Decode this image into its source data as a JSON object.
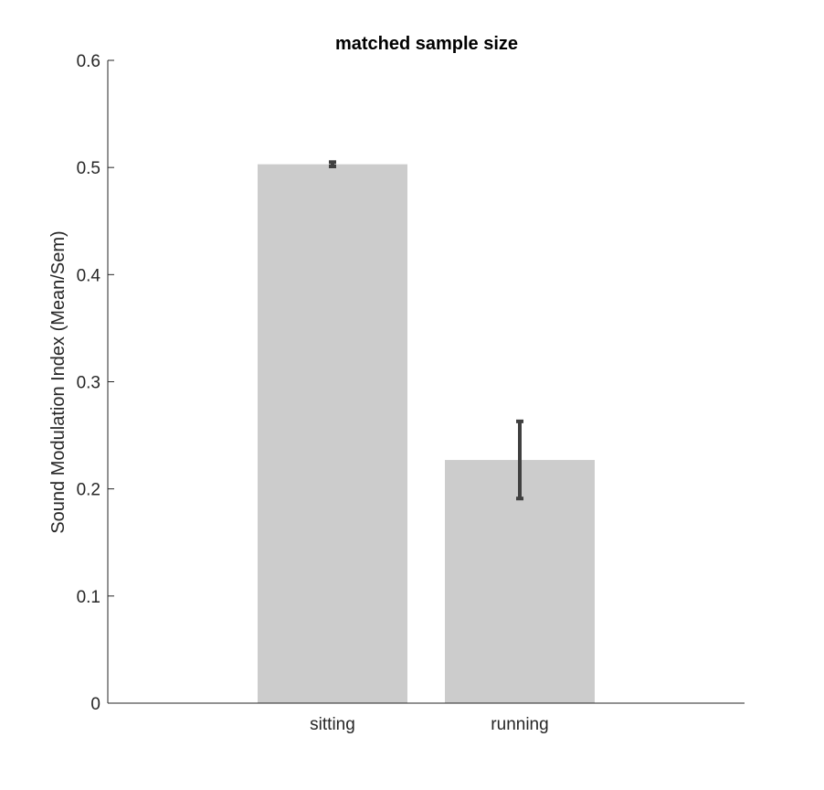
{
  "chart_data": {
    "type": "bar",
    "title": "matched sample size",
    "xlabel": "",
    "ylabel": "Sound Modulation Index (Mean/Sem)",
    "categories": [
      "sitting",
      "running"
    ],
    "values": [
      0.503,
      0.227
    ],
    "errors": [
      0.002,
      0.036
    ],
    "ylim": [
      0,
      0.6
    ],
    "yticks": [
      0,
      0.1,
      0.2,
      0.3,
      0.4,
      0.5,
      0.6
    ],
    "ytick_labels": [
      "0",
      "0.1",
      "0.2",
      "0.3",
      "0.4",
      "0.5",
      "0.6"
    ],
    "grid": false,
    "legend": "none",
    "colors": {
      "bar": "#cccccc",
      "error_bar": "#404040",
      "axis": "#262626"
    }
  }
}
